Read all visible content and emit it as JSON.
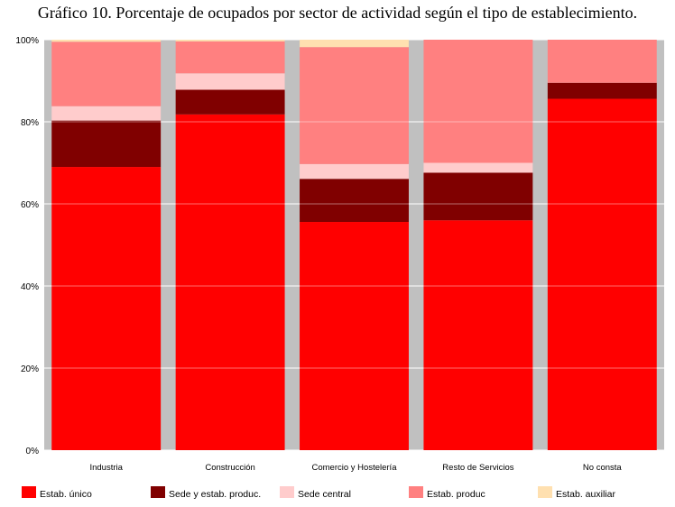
{
  "chart_data": {
    "type": "bar",
    "stacked": true,
    "title": "Gráfico 10. Porcentaje de ocupados por sector de actividad según el tipo de establecimiento.",
    "categories": [
      "Industria",
      "Construcción",
      "Comercio y Hostelería",
      "Resto de Servicios",
      "No consta"
    ],
    "series": [
      {
        "name": "Estab. único",
        "color": "#ff0000",
        "values": [
          69.0,
          81.8,
          55.6,
          56.0,
          85.6
        ]
      },
      {
        "name": "Sede y estab. produc.",
        "color": "#800000",
        "values": [
          11.3,
          6.0,
          10.5,
          11.6,
          3.9
        ]
      },
      {
        "name": "Sede central",
        "color": "#ffcccc",
        "values": [
          3.5,
          4.0,
          3.6,
          2.4,
          0.0
        ]
      },
      {
        "name": "Estab. produc",
        "color": "#ff8080",
        "values": [
          15.7,
          7.8,
          28.5,
          30.0,
          10.5
        ]
      },
      {
        "name": "Estab. auxiliar",
        "color": "#ffe0b0",
        "values": [
          0.5,
          0.4,
          1.8,
          0.0,
          0.0
        ]
      }
    ],
    "ylim": [
      0,
      100
    ],
    "yticks": [
      0,
      20,
      40,
      60,
      80,
      100
    ],
    "ytick_labels": [
      "0%",
      "20%",
      "40%",
      "60%",
      "80%",
      "100%"
    ],
    "grid": true,
    "plot_background": "#c0c0c0",
    "legend_position": "bottom"
  }
}
